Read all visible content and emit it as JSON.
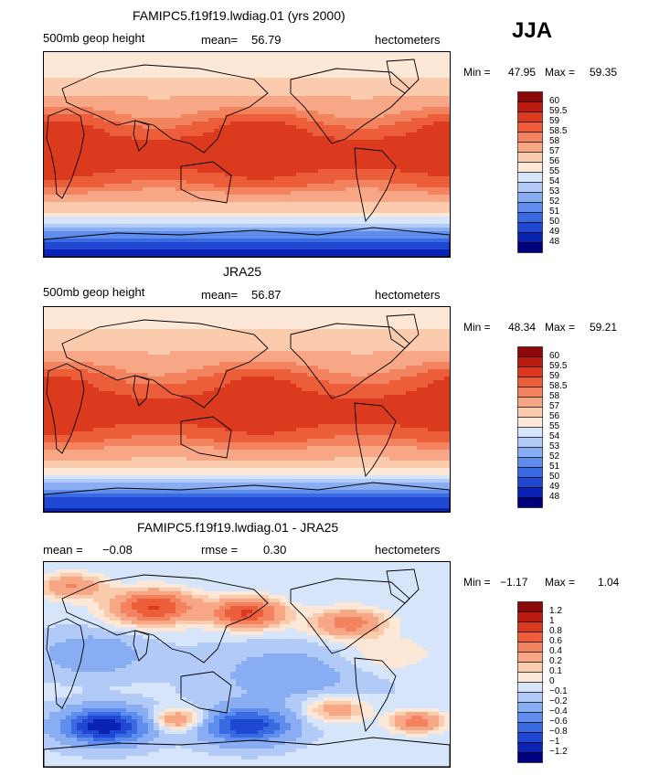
{
  "season": "JJA",
  "colors": {
    "abs_scale": [
      "#00007f",
      "#0a23b4",
      "#1f47d2",
      "#3a6ae2",
      "#5f8ded",
      "#89adf2",
      "#b1caf7",
      "#d6e5fa",
      "#fde7d6",
      "#fbcbae",
      "#f8a786",
      "#f3835f",
      "#ec5e3a",
      "#db3a1f",
      "#bb1a10",
      "#8d0808"
    ],
    "diff_scale": [
      "#00007f",
      "#0a23b4",
      "#1f47d2",
      "#3a6ae2",
      "#5f8ded",
      "#89adf2",
      "#b1caf7",
      "#d6e5fa",
      "#fde7d6",
      "#fbcbae",
      "#f8a786",
      "#f3835f",
      "#ec5e3a",
      "#db3a1f",
      "#bb1a10",
      "#8d0808"
    ]
  },
  "chart_data": [
    {
      "type": "heatmap",
      "title": "FAMIPC5.f19f19.lwdiag.01 (yrs 2000)",
      "variable": "500mb geop height",
      "mean_label": "mean=",
      "mean_value": "56.79",
      "units": "hectometers",
      "min_label": "Min =",
      "min_value": "47.95",
      "max_label": "Max =",
      "max_value": "59.35",
      "colorbar_levels": [
        "60",
        "59.5",
        "59",
        "58.5",
        "58",
        "57",
        "56",
        "55",
        "54",
        "53",
        "52",
        "51",
        "50",
        "49",
        "48"
      ],
      "latitude_profile": [
        47.95,
        50,
        53,
        56,
        57.5,
        58.6,
        59.1,
        59.3,
        59.2,
        58.8,
        58.0,
        57.0,
        56.2,
        55.6,
        55.0
      ],
      "latitude_rows_desc": "from south pole to north pole"
    },
    {
      "type": "heatmap",
      "title": "JRA25",
      "variable": "500mb geop height",
      "mean_label": "mean=",
      "mean_value": "56.87",
      "units": "hectometers",
      "min_label": "Min =",
      "min_value": "48.34",
      "max_label": "Max =",
      "max_value": "59.21",
      "colorbar_levels": [
        "60",
        "59.5",
        "59",
        "58.5",
        "58",
        "57",
        "56",
        "55",
        "54",
        "53",
        "52",
        "51",
        "50",
        "49",
        "48"
      ],
      "latitude_profile": [
        48.34,
        50.2,
        53.2,
        56.1,
        57.6,
        58.6,
        59.1,
        59.2,
        59.1,
        58.7,
        58.0,
        57.0,
        56.3,
        55.7,
        55.1
      ]
    },
    {
      "type": "heatmap",
      "title": "FAMIPC5.f19f19.lwdiag.01 - JRA25",
      "mean_label": "mean =",
      "mean_value": "−0.08",
      "rmse_label": "rmse =",
      "rmse_value": "0.30",
      "units": "hectometers",
      "min_label": "Min =",
      "min_value": "−1.17",
      "max_label": "Max =",
      "max_value": "1.04",
      "colorbar_levels": [
        "1.2",
        "1",
        "0.8",
        "0.6",
        "0.4",
        "0.2",
        "0.1",
        "0",
        "−0.1",
        "−0.2",
        "−0.4",
        "−0.6",
        "−0.8",
        "−1",
        "−1.2"
      ]
    }
  ]
}
